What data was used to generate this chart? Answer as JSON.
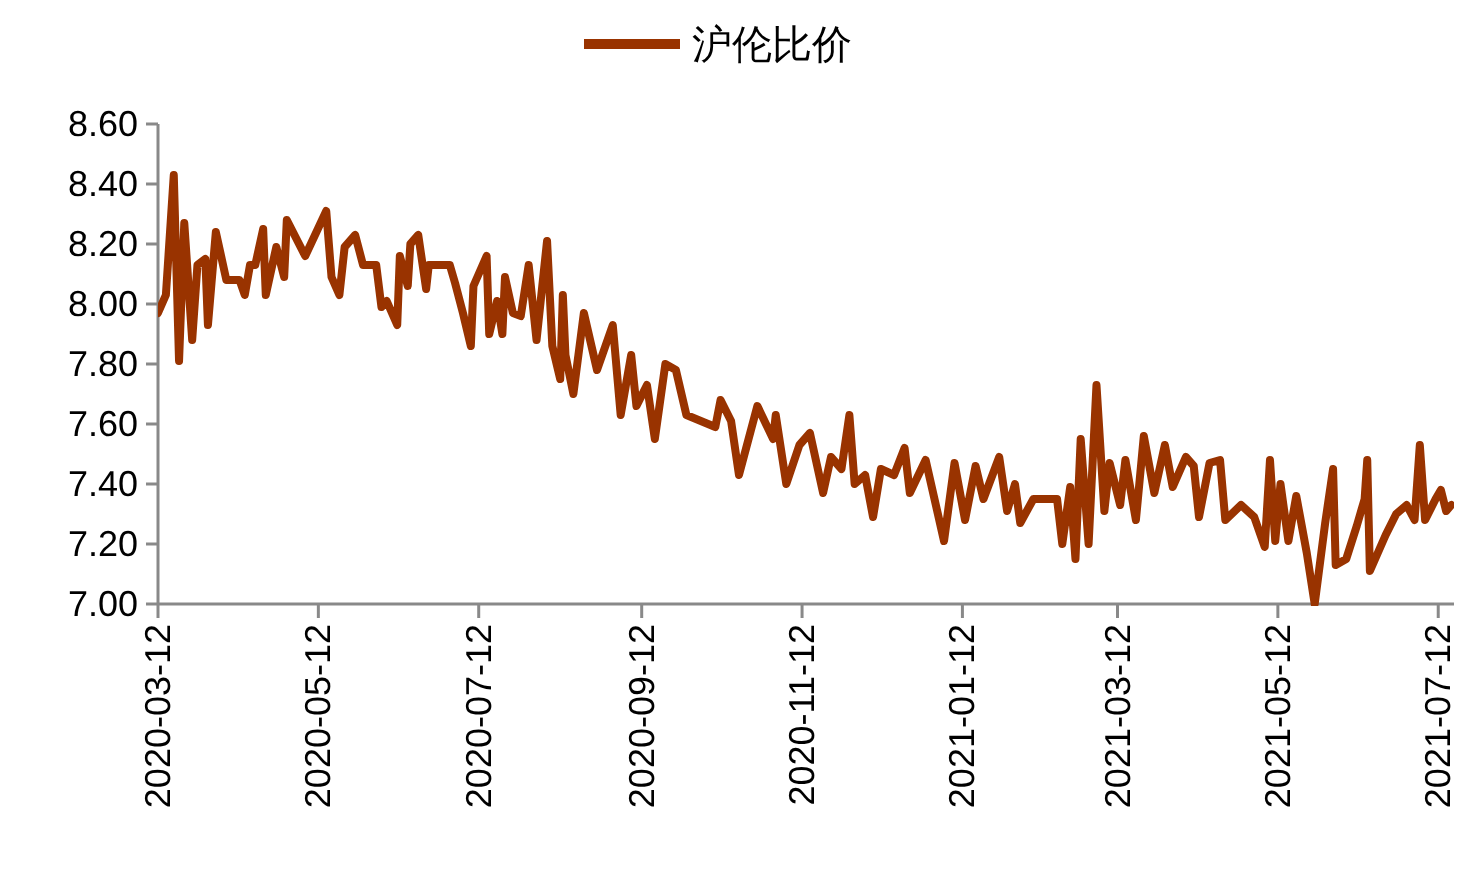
{
  "chart_data": {
    "type": "line",
    "legend": "top",
    "marker": "none",
    "line_style": "solid",
    "grid": false,
    "xlim": [
      "2020-03-12",
      "2021-07-18"
    ],
    "xticks": [
      {
        "value": "2020-03-12",
        "label": "2020-03-12"
      },
      {
        "value": "2020-05-12",
        "label": "2020-05-12"
      },
      {
        "value": "2020-07-12",
        "label": "2020-07-12"
      },
      {
        "value": "2020-09-12",
        "label": "2020-09-12"
      },
      {
        "value": "2020-11-12",
        "label": "2020-11-12"
      },
      {
        "value": "2021-01-12",
        "label": "2021-01-12"
      },
      {
        "value": "2021-03-12",
        "label": "2021-03-12"
      },
      {
        "value": "2021-05-12",
        "label": "2021-05-12"
      },
      {
        "value": "2021-07-12",
        "label": "2021-07-12"
      }
    ],
    "ylim": [
      7.0,
      8.6
    ],
    "yticks": [
      {
        "value": 7.0,
        "label": "7.00"
      },
      {
        "value": 7.2,
        "label": "7.20"
      },
      {
        "value": 7.4,
        "label": "7.40"
      },
      {
        "value": 7.6,
        "label": "7.60"
      },
      {
        "value": 7.8,
        "label": "7.80"
      },
      {
        "value": 8.0,
        "label": "8.00"
      },
      {
        "value": 8.2,
        "label": "8.20"
      },
      {
        "value": 8.4,
        "label": "8.40"
      },
      {
        "value": 8.6,
        "label": "8.60"
      }
    ],
    "x": [
      "2020-03-12",
      "2020-03-15",
      "2020-03-18",
      "2020-03-20",
      "2020-03-22",
      "2020-03-25",
      "2020-03-27",
      "2020-03-30",
      "2020-03-31",
      "2020-04-03",
      "2020-04-07",
      "2020-04-12",
      "2020-04-14",
      "2020-04-16",
      "2020-04-18",
      "2020-04-21",
      "2020-04-22",
      "2020-04-26",
      "2020-04-29",
      "2020-04-30",
      "2020-05-07",
      "2020-05-15",
      "2020-05-17",
      "2020-05-20",
      "2020-05-22",
      "2020-05-26",
      "2020-05-29",
      "2020-06-03",
      "2020-06-05",
      "2020-06-07",
      "2020-06-11",
      "2020-06-12",
      "2020-06-15",
      "2020-06-16",
      "2020-06-19",
      "2020-06-22",
      "2020-06-23",
      "2020-07-01",
      "2020-07-03",
      "2020-07-06",
      "2020-07-09",
      "2020-07-10",
      "2020-07-15",
      "2020-07-16",
      "2020-07-19",
      "2020-07-21",
      "2020-07-22",
      "2020-07-25",
      "2020-07-28",
      "2020-07-31",
      "2020-08-03",
      "2020-08-07",
      "2020-08-09",
      "2020-08-12",
      "2020-08-13",
      "2020-08-14",
      "2020-08-17",
      "2020-08-21",
      "2020-08-26",
      "2020-09-01",
      "2020-09-04",
      "2020-09-08",
      "2020-09-10",
      "2020-09-14",
      "2020-09-17",
      "2020-09-21",
      "2020-09-25",
      "2020-09-29",
      "2020-10-10",
      "2020-10-12",
      "2020-10-16",
      "2020-10-19",
      "2020-10-26",
      "2020-11-01",
      "2020-11-02",
      "2020-11-06",
      "2020-11-11",
      "2020-11-15",
      "2020-11-20",
      "2020-11-23",
      "2020-11-27",
      "2020-11-30",
      "2020-12-02",
      "2020-12-06",
      "2020-12-09",
      "2020-12-12",
      "2020-12-17",
      "2020-12-21",
      "2020-12-23",
      "2020-12-29",
      "2021-01-05",
      "2021-01-09",
      "2021-01-13",
      "2021-01-17",
      "2021-01-20",
      "2021-01-26",
      "2021-01-29",
      "2021-02-01",
      "2021-02-03",
      "2021-02-08",
      "2021-02-17",
      "2021-02-19",
      "2021-02-22",
      "2021-02-24",
      "2021-02-26",
      "2021-03-01",
      "2021-03-04",
      "2021-03-07",
      "2021-03-09",
      "2021-03-13",
      "2021-03-15",
      "2021-03-19",
      "2021-03-22",
      "2021-03-26",
      "2021-03-30",
      "2021-04-02",
      "2021-04-07",
      "2021-04-10",
      "2021-04-12",
      "2021-04-16",
      "2021-04-20",
      "2021-04-22",
      "2021-04-28",
      "2021-05-03",
      "2021-05-07",
      "2021-05-09",
      "2021-05-11",
      "2021-05-13",
      "2021-05-16",
      "2021-05-19",
      "2021-05-23",
      "2021-05-26",
      "2021-05-30",
      "2021-06-02",
      "2021-06-03",
      "2021-06-07",
      "2021-06-11",
      "2021-06-14",
      "2021-06-15",
      "2021-06-16",
      "2021-06-22",
      "2021-06-26",
      "2021-06-30",
      "2021-07-03",
      "2021-07-05",
      "2021-07-07",
      "2021-07-11",
      "2021-07-13",
      "2021-07-15",
      "2021-07-17"
    ],
    "series": [
      {
        "name": "沪伦比价",
        "color": "#993300",
        "values": [
          7.97,
          8.03,
          8.43,
          7.81,
          8.27,
          7.88,
          8.13,
          8.15,
          7.93,
          8.24,
          8.08,
          8.08,
          8.03,
          8.13,
          8.13,
          8.25,
          8.03,
          8.19,
          8.09,
          8.28,
          8.16,
          8.31,
          8.09,
          8.03,
          8.19,
          8.23,
          8.13,
          8.13,
          7.99,
          8.01,
          7.93,
          8.16,
          8.06,
          8.2,
          8.23,
          8.05,
          8.13,
          8.13,
          8.07,
          7.97,
          7.86,
          8.06,
          8.16,
          7.9,
          8.01,
          7.9,
          8.09,
          7.97,
          7.96,
          8.13,
          7.88,
          8.21,
          7.86,
          7.75,
          8.03,
          7.83,
          7.7,
          7.97,
          7.78,
          7.93,
          7.63,
          7.83,
          7.66,
          7.73,
          7.55,
          7.8,
          7.78,
          7.63,
          7.59,
          7.68,
          7.61,
          7.43,
          7.66,
          7.55,
          7.63,
          7.4,
          7.53,
          7.57,
          7.37,
          7.49,
          7.45,
          7.63,
          7.4,
          7.43,
          7.29,
          7.45,
          7.43,
          7.52,
          7.37,
          7.48,
          7.21,
          7.47,
          7.28,
          7.46,
          7.35,
          7.49,
          7.31,
          7.4,
          7.27,
          7.35,
          7.35,
          7.2,
          7.39,
          7.15,
          7.55,
          7.2,
          7.73,
          7.31,
          7.47,
          7.33,
          7.48,
          7.28,
          7.56,
          7.37,
          7.53,
          7.39,
          7.49,
          7.46,
          7.29,
          7.47,
          7.48,
          7.28,
          7.33,
          7.29,
          7.19,
          7.48,
          7.21,
          7.4,
          7.21,
          7.36,
          7.17,
          7.0,
          7.27,
          7.45,
          7.13,
          7.15,
          7.26,
          7.35,
          7.48,
          7.11,
          7.23,
          7.3,
          7.33,
          7.28,
          7.53,
          7.28,
          7.35,
          7.38,
          7.31,
          7.33
        ]
      }
    ]
  }
}
